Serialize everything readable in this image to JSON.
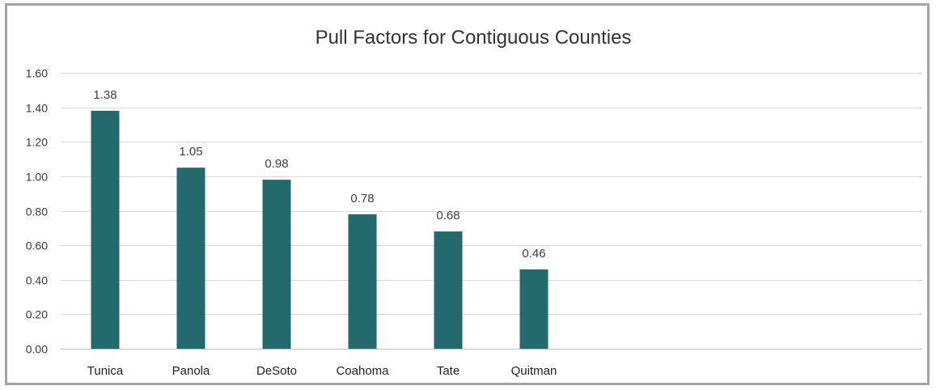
{
  "chart_data": {
    "type": "bar",
    "title": "Pull Factors for Contiguous Counties",
    "xlabel": "",
    "ylabel": "",
    "categories": [
      "Tunica",
      "Panola",
      "DeSoto",
      "Coahoma",
      "Tate",
      "Quitman"
    ],
    "values": [
      1.38,
      1.05,
      0.98,
      0.78,
      0.68,
      0.46
    ],
    "data_labels": [
      "1.38",
      "1.05",
      "0.98",
      "0.78",
      "0.68",
      "0.46"
    ],
    "ylim": [
      0,
      1.6
    ],
    "yticks": [
      0,
      0.2,
      0.4,
      0.6,
      0.8,
      1.0,
      1.2,
      1.4,
      1.6
    ],
    "ytick_labels": [
      "0.00",
      "0.20",
      "0.40",
      "0.60",
      "0.80",
      "1.00",
      "1.20",
      "1.40",
      "1.60"
    ],
    "grid": true,
    "legend": "none",
    "bar_color": "#246a6c"
  }
}
